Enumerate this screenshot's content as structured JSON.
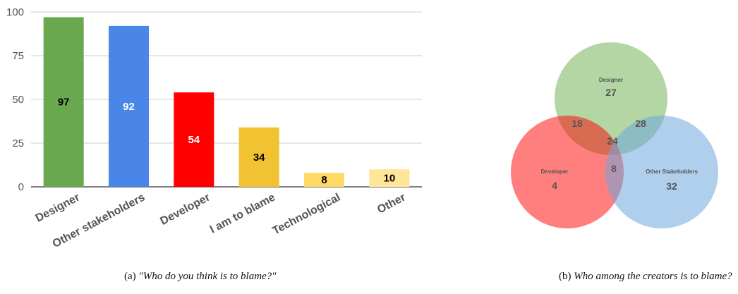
{
  "chart_data": [
    {
      "type": "bar",
      "categories": [
        "Designer",
        "Other stakeholders",
        "Developer",
        "I am to blame",
        "Technological",
        "Other"
      ],
      "values": [
        97,
        92,
        54,
        34,
        8,
        10
      ],
      "colors": [
        "#6aa84f",
        "#4a86e8",
        "#ff0000",
        "#f1c232",
        "#ffd966",
        "#ffe599"
      ],
      "label_colors": [
        "#000000",
        "#ffffff",
        "#ffffff",
        "#000000",
        "#000000",
        "#000000"
      ],
      "ylim": [
        0,
        100
      ],
      "yticks": [
        0,
        25,
        50,
        75,
        100
      ],
      "grid": true,
      "title": "",
      "xlabel": "",
      "ylabel": ""
    },
    {
      "type": "venn",
      "sets": [
        {
          "name": "Designer",
          "only": 27,
          "color": "#93c47d"
        },
        {
          "name": "Developer",
          "only": 4,
          "color": "#ff0000"
        },
        {
          "name": "Other Stakeholders",
          "only": 32,
          "color": "#6fa8dc"
        }
      ],
      "intersections": {
        "designer_developer": 18,
        "designer_other": 28,
        "developer_other": 8,
        "all": 24
      }
    }
  ],
  "captions": {
    "a_prefix": "(a)",
    "a_text": "\"Who do you think is to blame?\"",
    "b_prefix": "(b)",
    "b_text": "Who among the creators is to blame?"
  }
}
